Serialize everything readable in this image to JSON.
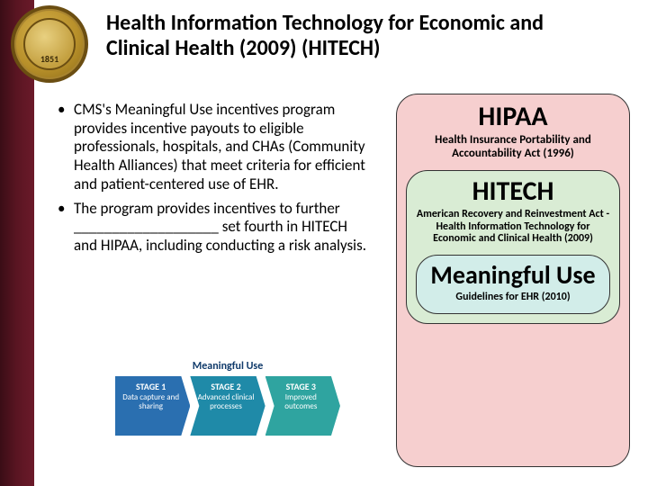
{
  "seal": {
    "year": "1851"
  },
  "title": "Health Information Technology for Economic and Clinical Health (2009) (HITECH)",
  "bullets": [
    "CMS's Meaningful Use incentives program provides incentive payouts to eligible professionals, hospitals, and CHAs (Community Health Alliances) that meet criteria for efficient and patient-centered use of EHR.",
    "The program provides incentives to further ___________________ set fourth in HITECH and HIPAA, including conducting a risk analysis."
  ],
  "mu_graphic": {
    "title": "Meaningful Use",
    "stages": [
      {
        "name": "STAGE 1",
        "desc": "Data capture and sharing",
        "color": "#2a6fb0"
      },
      {
        "name": "STAGE 2",
        "desc": "Advanced clinical processes",
        "color": "#1f8aa8"
      },
      {
        "name": "STAGE 3",
        "desc": "Improved outcomes",
        "color": "#2fa4a0"
      }
    ]
  },
  "right": {
    "outer": {
      "bg": "#f6cfcf",
      "heading": "HIPAA",
      "sub": "Health Insurance Portability and Accountability Act (1996)"
    },
    "mid": {
      "bg": "#d9ecd4",
      "heading": "HITECH",
      "sub": "American Recovery and Reinvestment Act - Health Information Technology for Economic and Clinical Health (2009)"
    },
    "inner": {
      "bg": "#d2ede9",
      "heading": "Meaningful Use",
      "sub": "Guidelines for EHR (2010)"
    }
  }
}
